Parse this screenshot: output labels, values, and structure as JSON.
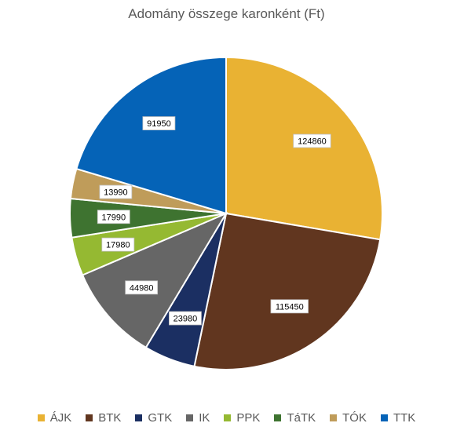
{
  "chart_data": {
    "type": "pie",
    "title": "Adomány összege karonként (Ft)",
    "categories": [
      "ÁJK",
      "BTK",
      "GTK",
      "IK",
      "PPK",
      "TáTK",
      "TÓK",
      "TTK"
    ],
    "values": [
      124860,
      115450,
      23980,
      44980,
      17980,
      17990,
      13990,
      91950
    ],
    "colors": [
      "#E9B233",
      "#61361F",
      "#1B2F62",
      "#666666",
      "#95B932",
      "#3E7330",
      "#BF9C5A",
      "#0563B7"
    ],
    "data_labels": [
      "124860",
      "115450",
      "23980",
      "44980",
      "17980",
      "17990",
      "13990",
      "91950"
    ],
    "legend_position": "bottom",
    "start_angle": "12 o'clock",
    "direction": "clockwise"
  }
}
